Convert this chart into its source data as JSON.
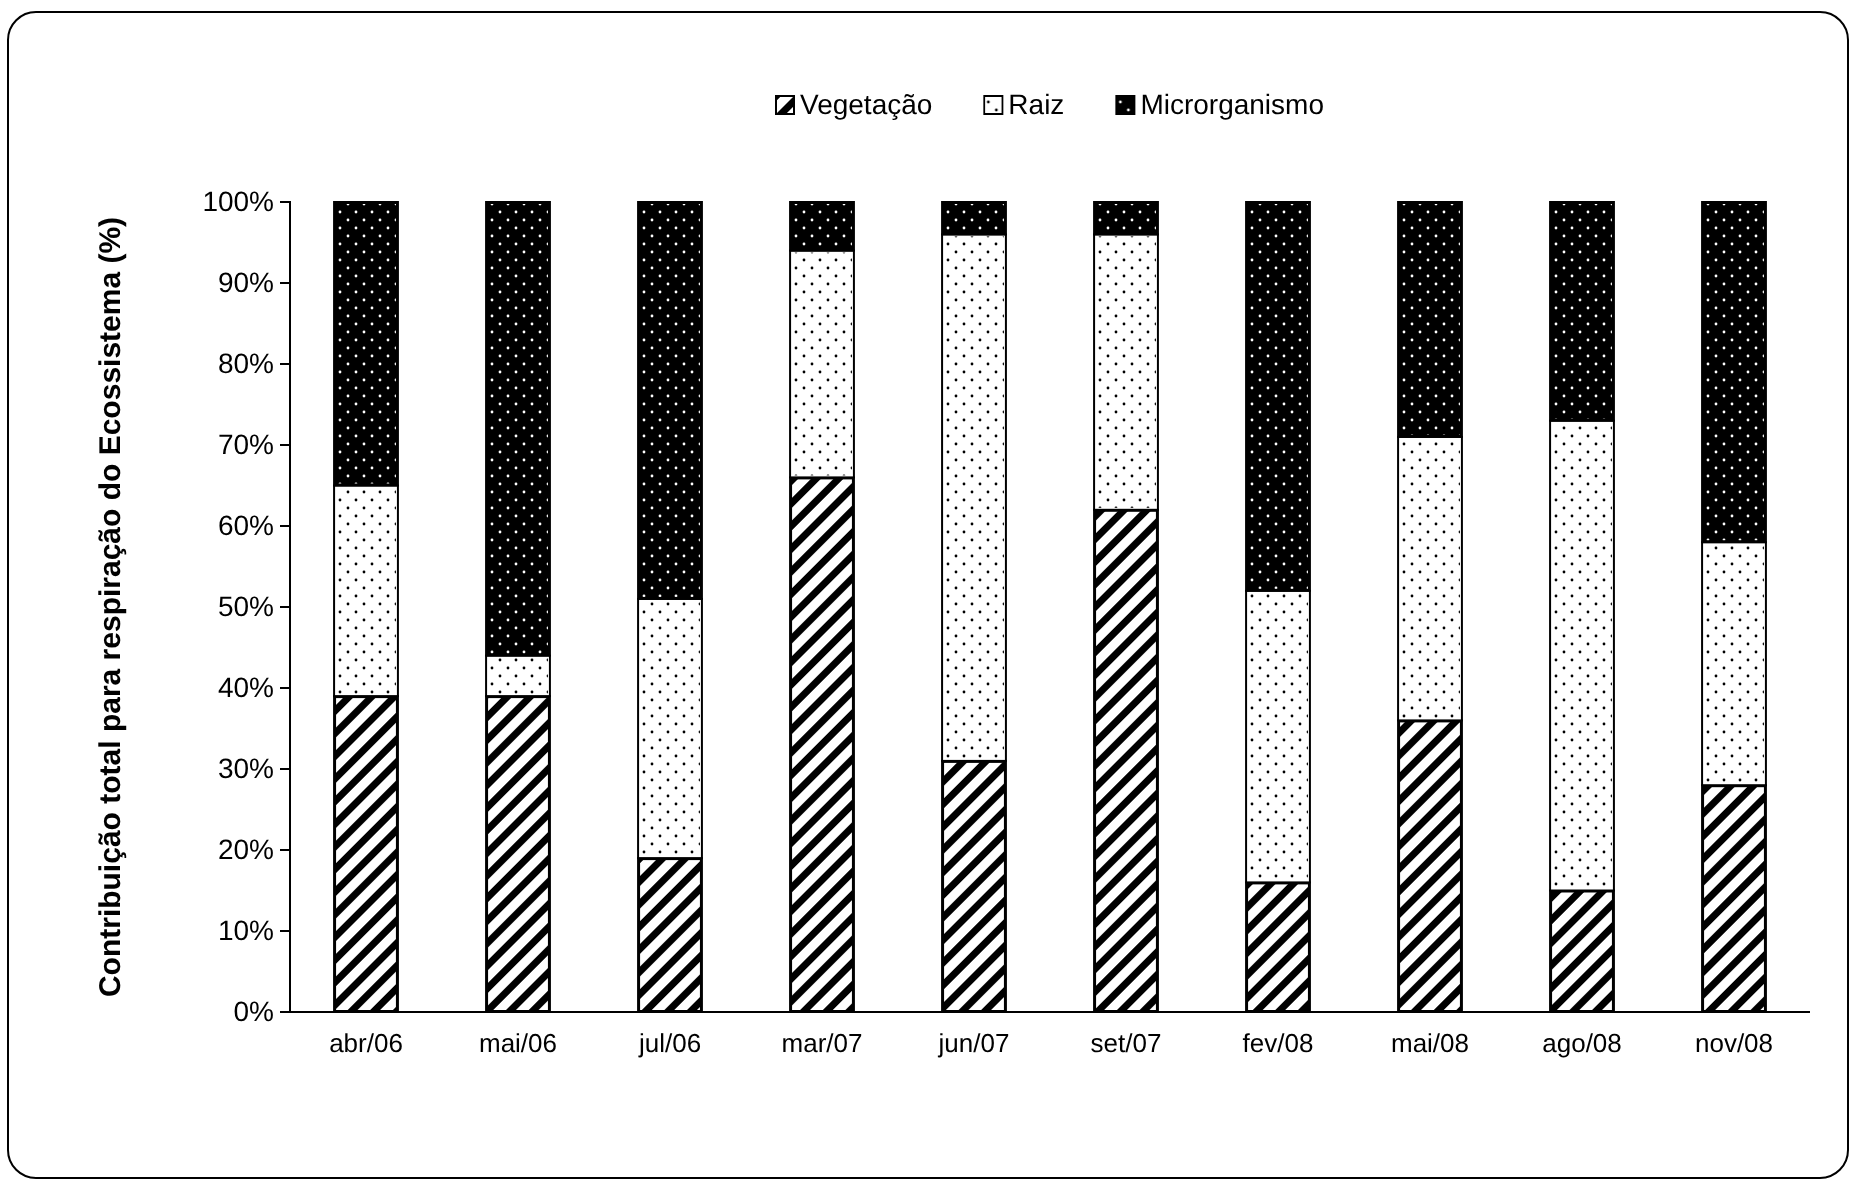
{
  "chart_data": {
    "type": "bar",
    "stacked": true,
    "ylabel": "Contribuição total para respiração do Ecossistema (%)",
    "categories": [
      "abr/06",
      "mai/06",
      "jul/06",
      "mar/07",
      "jun/07",
      "set/07",
      "fev/08",
      "mai/08",
      "ago/08",
      "nov/08"
    ],
    "series": [
      {
        "name": "Vegetação",
        "color": "#000000",
        "values": [
          39,
          39,
          19,
          66,
          31,
          62,
          16,
          36,
          15,
          28
        ]
      },
      {
        "name": "Raiz",
        "color": "#ffffff",
        "values": [
          26,
          5,
          32,
          28,
          65,
          34,
          36,
          35,
          58,
          30
        ]
      },
      {
        "name": "Microrganismo",
        "color": "#000000",
        "values": [
          35,
          56,
          49,
          6,
          4,
          4,
          48,
          29,
          27,
          42
        ]
      }
    ],
    "ylim": [
      0,
      100
    ],
    "yticks": [
      {
        "value": 0,
        "label": "0%"
      },
      {
        "value": 10,
        "label": "10%"
      },
      {
        "value": 20,
        "label": "20%"
      },
      {
        "value": 30,
        "label": "30%"
      },
      {
        "value": 40,
        "label": "40%"
      },
      {
        "value": 50,
        "label": "50%"
      },
      {
        "value": 60,
        "label": "60%"
      },
      {
        "value": 70,
        "label": "70%"
      },
      {
        "value": 80,
        "label": "80%"
      },
      {
        "value": 90,
        "label": "90%"
      },
      {
        "value": 100,
        "label": "100%"
      }
    ],
    "legend": "top",
    "grid": false
  }
}
